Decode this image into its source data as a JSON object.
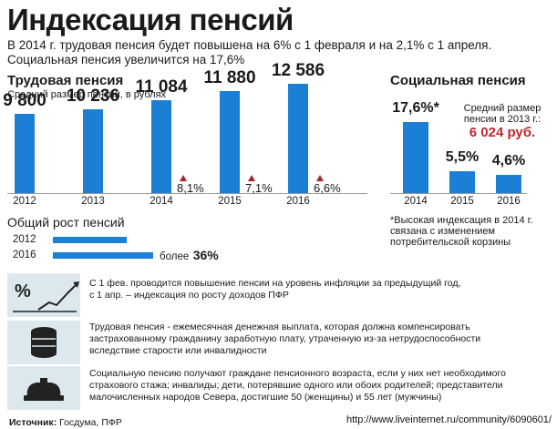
{
  "header": {
    "title": "Индексация пенсий",
    "intro_line1": "В 2014 г. трудовая пенсия будет повышена на 6% с 1 февраля и на 2,1% с 1 апреля.",
    "intro_line2": "Социальная пенсия увеличится на 17,6%"
  },
  "labor": {
    "title": "Трудовая пенсия",
    "subtitle": "Средний размер пенсии, в рублях"
  },
  "social": {
    "title": "Социальная пенсия",
    "avg_label_line1": "Средний размер",
    "avg_label_line2": "пенсии в 2013 г.:",
    "avg_value": "6 024 руб.",
    "footnote_line1": "*Высокая индексация в 2014 г.",
    "footnote_line2": "связана с изменением",
    "footnote_line3": "потребительской корзины"
  },
  "growth": {
    "title": "Общий рост пенсий",
    "prefix": "более",
    "value": "36%"
  },
  "notes": [
    {
      "icon": "percent-growth-icon",
      "line1": "С 1 фев. проводится повышение пенсии на уровень инфляции за предыдущий год,",
      "line2": "с 1 апр. – индексация по росту доходов ПФР",
      "line3": ""
    },
    {
      "icon": "coin-stack-icon",
      "line1": "Трудовая пенсия - ежемесячная денежная выплата, которая должна компенсировать",
      "line2": "застрахованному гражданину заработную плату, утраченную из-за нетрудоспособности",
      "line3": "вследствие старости или инвалидности"
    },
    {
      "icon": "wallet-icon",
      "line1": "Социальную пенсию получают граждане пенсионного возраста, если у них нет необходимого",
      "line2": "страхового стажа; инвалиды; дети, потерявшие одного или обоих родителей; представители",
      "line3": "малочисленных народов Севера, достигшие 50 (женщины) и 55 лет (мужчины)"
    }
  ],
  "source": {
    "label": "Источник:",
    "value": "Госдума, ПФР"
  },
  "watermark": "http://www.liveinternet.ru/community/6090601/",
  "colors": {
    "bar": "#1b7fd6",
    "accent_red": "#c0272d",
    "arrow": "#a8242a",
    "note_box": "#dde8ee"
  },
  "chart_data": [
    {
      "type": "bar",
      "title": "Трудовая пенсия",
      "ylabel": "Средний размер пенсии, в рублях",
      "categories": [
        "2012",
        "2013",
        "2014",
        "2015",
        "2016"
      ],
      "values": [
        9800,
        10236,
        11084,
        11880,
        12586
      ],
      "value_labels": [
        "9 800",
        "10 236",
        "11 084",
        "11 880",
        "12 586"
      ],
      "growth_labels": [
        "",
        "",
        "8,1%",
        "7,1%",
        "6,6%"
      ]
    },
    {
      "type": "bar",
      "title": "Социальная пенсия",
      "categories": [
        "2014",
        "2015",
        "2016"
      ],
      "values": [
        17.6,
        5.5,
        4.6
      ],
      "value_labels": [
        "17,6%*",
        "5,5%",
        "4,6%"
      ]
    },
    {
      "type": "bar",
      "orientation": "horizontal",
      "title": "Общий рост пенсий",
      "categories": [
        "2012",
        "2016"
      ],
      "values": [
        100,
        136
      ],
      "value_labels": [
        "",
        "более 36%"
      ]
    }
  ]
}
